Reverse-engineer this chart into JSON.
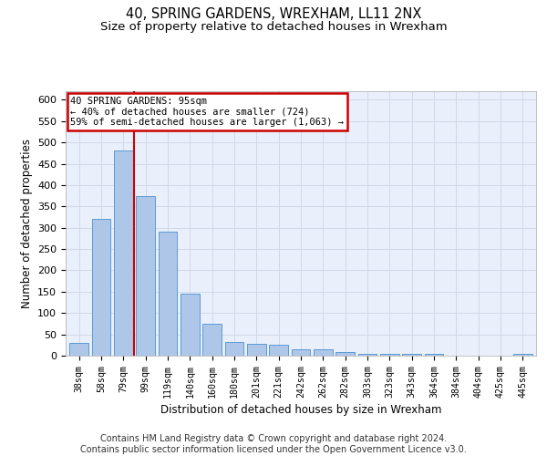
{
  "title": "40, SPRING GARDENS, WREXHAM, LL11 2NX",
  "subtitle": "Size of property relative to detached houses in Wrexham",
  "xlabel": "Distribution of detached houses by size in Wrexham",
  "ylabel": "Number of detached properties",
  "bar_labels": [
    "38sqm",
    "58sqm",
    "79sqm",
    "99sqm",
    "119sqm",
    "140sqm",
    "160sqm",
    "180sqm",
    "201sqm",
    "221sqm",
    "242sqm",
    "262sqm",
    "282sqm",
    "303sqm",
    "323sqm",
    "343sqm",
    "364sqm",
    "384sqm",
    "404sqm",
    "425sqm",
    "445sqm"
  ],
  "bar_values": [
    30,
    320,
    480,
    375,
    290,
    145,
    75,
    32,
    28,
    26,
    15,
    15,
    8,
    5,
    5,
    4,
    4,
    0,
    0,
    0,
    5
  ],
  "bar_color": "#aec6e8",
  "bar_edge_color": "#5b9bd5",
  "annotation_line1": "40 SPRING GARDENS: 95sqm",
  "annotation_line2": "← 40% of detached houses are smaller (724)",
  "annotation_line3": "59% of semi-detached houses are larger (1,063) →",
  "annotation_box_color": "#ffffff",
  "annotation_box_edge_color": "#cc0000",
  "vline_x_index": 2.5,
  "vline_color": "#cc0000",
  "ylim": [
    0,
    620
  ],
  "yticks": [
    0,
    50,
    100,
    150,
    200,
    250,
    300,
    350,
    400,
    450,
    500,
    550,
    600
  ],
  "grid_color": "#d0d8e8",
  "bg_color": "#eaf0fb",
  "title_fontsize": 10.5,
  "subtitle_fontsize": 9.5,
  "footer_text": "Contains HM Land Registry data © Crown copyright and database right 2024.\nContains public sector information licensed under the Open Government Licence v3.0.",
  "footer_fontsize": 7.0
}
